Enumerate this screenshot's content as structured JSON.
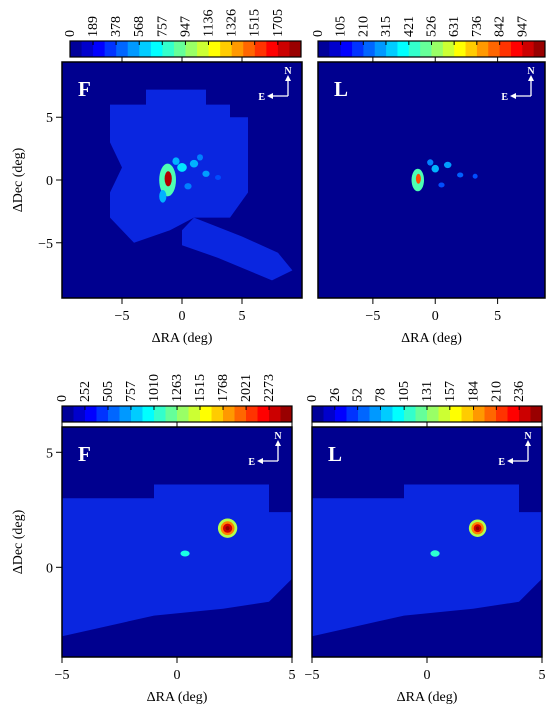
{
  "chart_data": [
    {
      "type": "heatmap",
      "panel_label": "F",
      "xlabel": "ΔRA (deg)",
      "ylabel": "ΔDec (deg)",
      "xlim": [
        -10,
        10
      ],
      "ylim": [
        -9.4,
        9.4
      ],
      "xticks": [
        {
          "value": -5,
          "label": "−5"
        },
        0,
        5
      ],
      "yticks": [
        {
          "value": -5,
          "label": "−5"
        },
        0,
        5
      ],
      "clim": [
        0,
        1895
      ],
      "cticks": [
        0,
        189,
        378,
        568,
        757,
        947,
        1136,
        1326,
        1515,
        1705
      ],
      "north_label": "N",
      "east_label": "E"
    },
    {
      "type": "heatmap",
      "panel_label": "L",
      "xlabel": "ΔRA (deg)",
      "xlim": [
        -9.4,
        8.8
      ],
      "ylim": [
        -9.4,
        9.4
      ],
      "xticks": [
        {
          "value": -5,
          "label": "−5"
        },
        0,
        5
      ],
      "clim": [
        0,
        1052
      ],
      "cticks": [
        0,
        105,
        210,
        315,
        421,
        526,
        631,
        736,
        842,
        947
      ],
      "north_label": "N",
      "east_label": "E"
    },
    {
      "type": "heatmap",
      "panel_label": "F",
      "xlabel": "ΔRA (deg)",
      "ylabel": "ΔDec (deg)",
      "xlim": [
        -5,
        5
      ],
      "ylim": [
        -3.9,
        6.1
      ],
      "xticks": [
        {
          "value": -5,
          "label": "−5"
        },
        0,
        5
      ],
      "yticks": [
        0,
        5
      ],
      "clim": [
        0,
        2525
      ],
      "cticks": [
        0,
        252,
        505,
        757,
        1010,
        1263,
        1515,
        1768,
        2021,
        2273
      ],
      "north_label": "N",
      "east_label": "E"
    },
    {
      "type": "heatmap",
      "panel_label": "L",
      "xlabel": "ΔRA (deg)",
      "xlim": [
        -5,
        5
      ],
      "ylim": [
        -3.9,
        6.1
      ],
      "xticks": [
        {
          "value": -5,
          "label": "−5"
        },
        0,
        5
      ],
      "clim": [
        0,
        262
      ],
      "cticks": [
        0,
        26,
        52,
        78,
        105,
        131,
        157,
        184,
        210,
        236
      ],
      "north_label": "N",
      "east_label": "E"
    }
  ]
}
